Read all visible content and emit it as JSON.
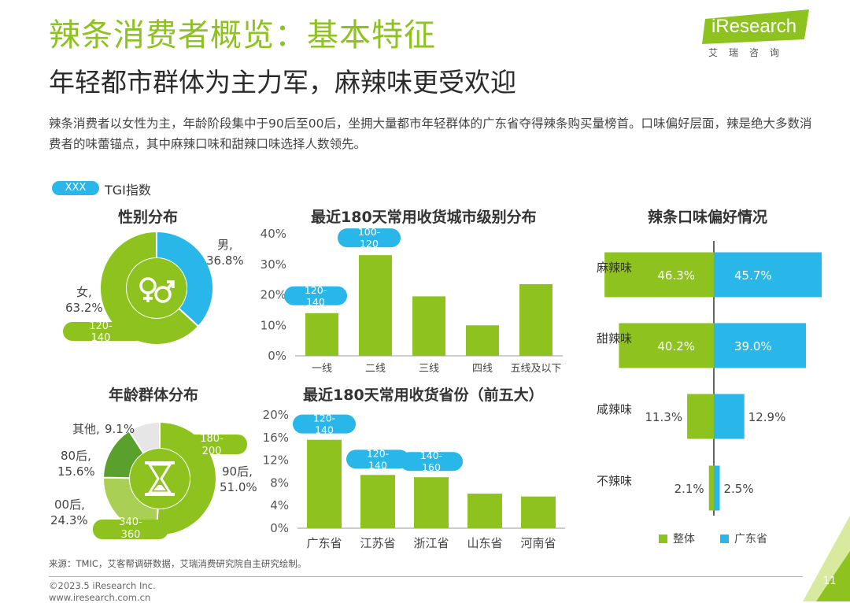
{
  "header": {
    "title": "辣条消费者概览：基本特征",
    "subtitle": "年轻都市群体为主力军，麻辣味更受欢迎",
    "summary": "辣条消费者以女性为主，年龄阶段集中于90后至00后，坐拥大量都市年轻群体的广东省夺得辣条购买量榜首。口味偏好层面，辣是绝大多数消费者的味蕾锚点，其中麻辣口味和甜辣口味选择人数领先。"
  },
  "logo": {
    "text": "iResearch",
    "cn": "艾瑞咨询"
  },
  "legend": {
    "pill": "XXX",
    "label": "TGI指数"
  },
  "colors": {
    "green": "#8dc21f",
    "blue": "#29b6e8",
    "dark_green": "#5aa02c",
    "light_gray": "#e6e6e6"
  },
  "chart_data": [
    {
      "type": "pie",
      "title": "性别分布",
      "labels": [
        "男,",
        "女,"
      ],
      "values": [
        36.8,
        63.2
      ],
      "value_labels": [
        "36.8%",
        "63.2%"
      ],
      "tgi": [
        "120-",
        "140"
      ],
      "center_icon": "gender-icon"
    },
    {
      "type": "bar",
      "title": "最近180天常用收货城市级别分布",
      "categories": [
        "一线",
        "二线",
        "三线",
        "四线",
        "五线及以下"
      ],
      "values": [
        14,
        33,
        19.5,
        10,
        23.5
      ],
      "ylim": [
        0,
        40
      ],
      "yticks": [
        "0%",
        "10%",
        "20%",
        "30%",
        "40%"
      ],
      "tgi": [
        {
          "category": "一线",
          "text": [
            "120-",
            "140"
          ]
        },
        {
          "category": "二线",
          "text": [
            "100-",
            "120"
          ]
        }
      ]
    },
    {
      "type": "pie",
      "title": "年龄群体分布",
      "labels": [
        "90后,",
        "00后,",
        "80后,",
        "其他,"
      ],
      "values": [
        51.0,
        24.3,
        15.6,
        9.1
      ],
      "value_labels": [
        "51.0%",
        "24.3%",
        "15.6%",
        "9.1%"
      ],
      "tgi_90": [
        "180-",
        "200"
      ],
      "tgi_00": [
        "340-",
        "360"
      ],
      "center_icon": "hourglass-icon"
    },
    {
      "type": "bar",
      "title": "最近180天常用收货省份（前五大）",
      "categories": [
        "广东省",
        "江苏省",
        "浙江省",
        "山东省",
        "河南省"
      ],
      "values": [
        15.6,
        9.4,
        9.0,
        6.1,
        5.6
      ],
      "ylim": [
        0,
        20
      ],
      "yticks": [
        "0%",
        "4%",
        "8%",
        "12%",
        "16%",
        "20%"
      ],
      "tgi": [
        {
          "category": "广东省",
          "text": [
            "120-",
            "140"
          ]
        },
        {
          "category": "江苏省",
          "text": [
            "120-",
            "140"
          ]
        },
        {
          "category": "浙江省",
          "text": [
            "140-",
            "160"
          ]
        }
      ]
    },
    {
      "type": "bar",
      "orientation": "horizontal-butterfly",
      "title": "辣条口味偏好情况",
      "categories": [
        "麻辣味",
        "甜辣味",
        "咸辣味",
        "不辣味"
      ],
      "series": [
        {
          "name": "整体",
          "values": [
            46.3,
            40.2,
            11.3,
            2.1
          ],
          "labels": [
            "46.3%",
            "40.2%",
            "11.3%",
            "2.1%"
          ]
        },
        {
          "name": "广东省",
          "values": [
            45.7,
            39.0,
            12.9,
            2.5
          ],
          "labels": [
            "45.7%",
            "39.0%",
            "12.9%",
            "2.5%"
          ]
        }
      ]
    }
  ],
  "footer": {
    "source": "来源：TMIC，艾客帮调研数据，艾瑞消费研究院自主研究绘制。",
    "copyright": "©2023.5 iResearch Inc.",
    "website": "www.iresearch.com.cn",
    "page": "11"
  }
}
